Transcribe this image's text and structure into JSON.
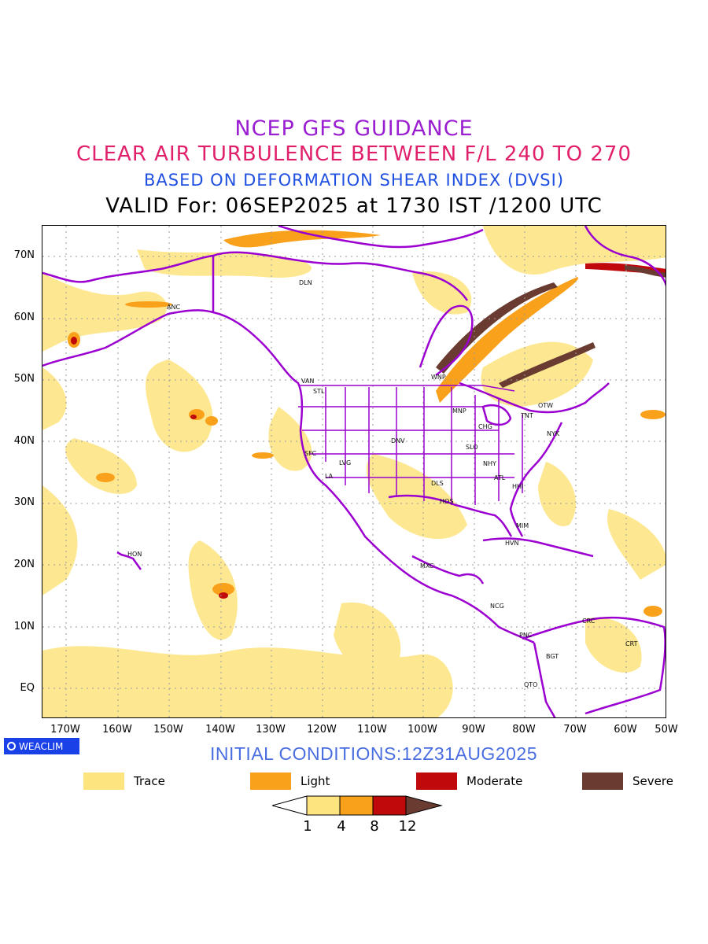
{
  "titles": {
    "line1": "NCEP GFS GUIDANCE",
    "line2": "CLEAR AIR TURBULENCE BETWEEN F/L 240 TO 270",
    "line3": "BASED ON DEFORMATION SHEAR INDEX (DVSI)",
    "line4": "VALID For: 06SEP2025 at 1730 IST /1200 UTC"
  },
  "lat_labels": [
    "70N",
    "60N",
    "50N",
    "40N",
    "30N",
    "20N",
    "10N",
    "EQ"
  ],
  "lon_labels": [
    "170W",
    "160W",
    "150W",
    "140W",
    "130W",
    "120W",
    "110W",
    "100W",
    "90W",
    "80W",
    "70W",
    "60W",
    "50W"
  ],
  "cities": [
    "ANC",
    "DLN",
    "VAN",
    "STL",
    "WNP",
    "MNP",
    "TNT",
    "OTW",
    "NYK",
    "CHG",
    "SLO",
    "DNV",
    "SFC",
    "LVG",
    "LA",
    "NHY",
    "ATL",
    "DLS",
    "HOS",
    "HHI",
    "MIM",
    "HVN",
    "MXC",
    "HON",
    "NCG",
    "CRC",
    "PNC",
    "BGT",
    "CRT",
    "QTO"
  ],
  "badge": "WEACLIM",
  "initial_conditions": "INITIAL CONDITIONS:12Z31AUG2025",
  "legend": [
    {
      "label": "Trace",
      "color": "#fde47e"
    },
    {
      "label": "Light",
      "color": "#f9a11b"
    },
    {
      "label": "Moderate",
      "color": "#c0090b"
    },
    {
      "label": "Severe",
      "color": "#6a3b30"
    }
  ],
  "colorbar": {
    "ticks": [
      "1",
      "4",
      "8",
      "12"
    ],
    "colors": [
      "#ffffff",
      "#fde47e",
      "#f9a11b",
      "#c0090b",
      "#6a3b30"
    ]
  },
  "colors": {
    "coastline": "#9b00d0",
    "grid": "#9a9a9a"
  }
}
